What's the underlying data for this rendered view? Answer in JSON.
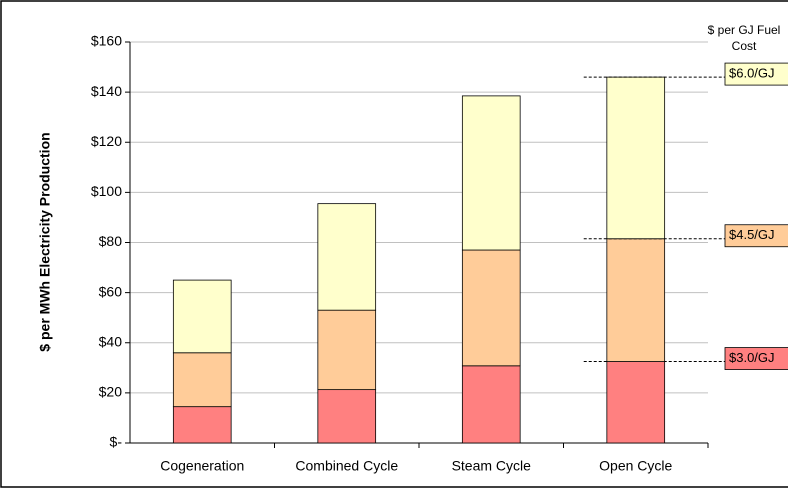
{
  "chart_data": {
    "type": "stacked_bar",
    "y_label": "$ per MWh Electricity Production",
    "legend_title": "$ per GJ Fuel Cost",
    "categories": [
      "Cogeneration",
      "Combined Cycle",
      "Steam Cycle",
      "Open Cycle"
    ],
    "series": [
      {
        "name": "$3.0/GJ",
        "color": "#ff8080",
        "values": [
          14.5,
          21.3,
          30.8,
          32.5
        ]
      },
      {
        "name": "$4.5/GJ",
        "color": "#ffcc99",
        "values": [
          21.5,
          31.7,
          46.2,
          49
        ]
      },
      {
        "name": "$6.0/GJ",
        "color": "#ffffcc",
        "values": [
          29,
          42.5,
          61.5,
          64.5
        ]
      }
    ],
    "ylim": [
      0,
      160
    ],
    "yticks": [
      {
        "value": 0,
        "label": "$-"
      },
      {
        "value": 20,
        "label": "$20"
      },
      {
        "value": 40,
        "label": "$40"
      },
      {
        "value": 60,
        "label": "$60"
      },
      {
        "value": 80,
        "label": "$80"
      },
      {
        "value": 100,
        "label": "$100"
      },
      {
        "value": 120,
        "label": "$120"
      },
      {
        "value": 140,
        "label": "$140"
      },
      {
        "value": 160,
        "label": "$160"
      }
    ],
    "grid": true
  }
}
